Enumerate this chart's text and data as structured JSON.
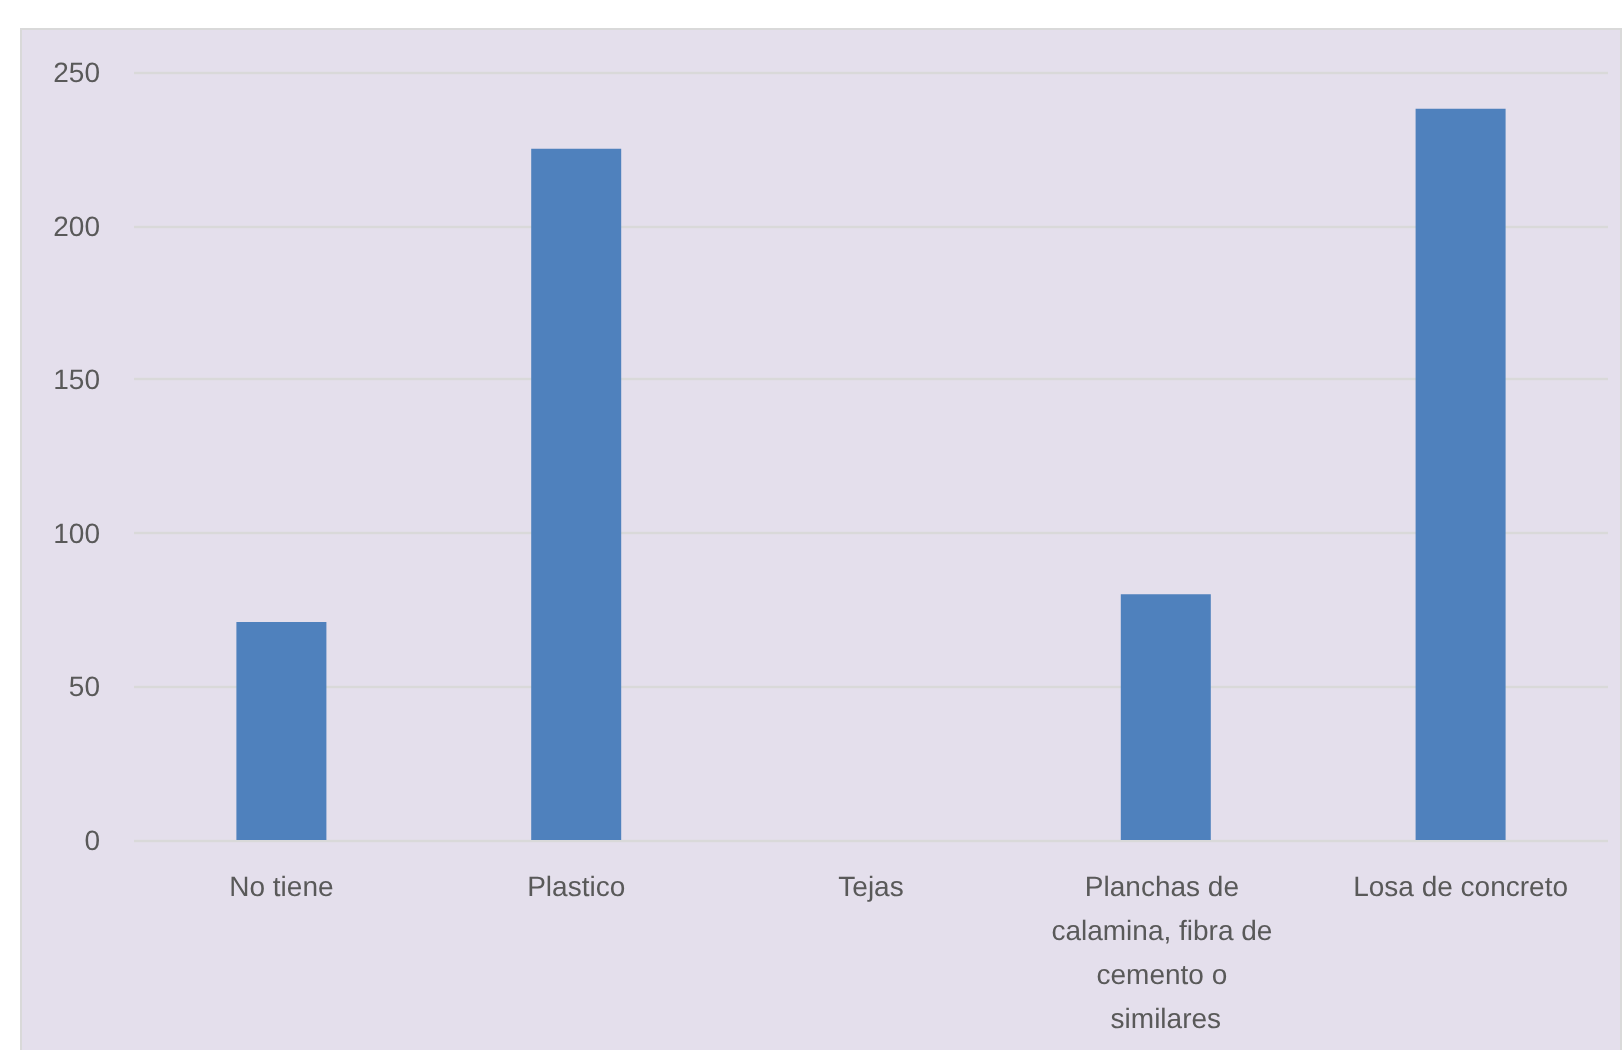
{
  "chart_data": {
    "type": "bar",
    "categories": [
      "No tiene",
      "Plastico",
      "Tejas",
      "Planchas de calamina, fibra de cemento o similares",
      "Losa de concreto"
    ],
    "values": [
      71,
      225,
      0,
      80,
      238
    ],
    "color": "#4f81bd",
    "ylim": [
      0,
      250
    ],
    "yticks": [
      0,
      50,
      100,
      150,
      200,
      250
    ],
    "grid": "y"
  }
}
